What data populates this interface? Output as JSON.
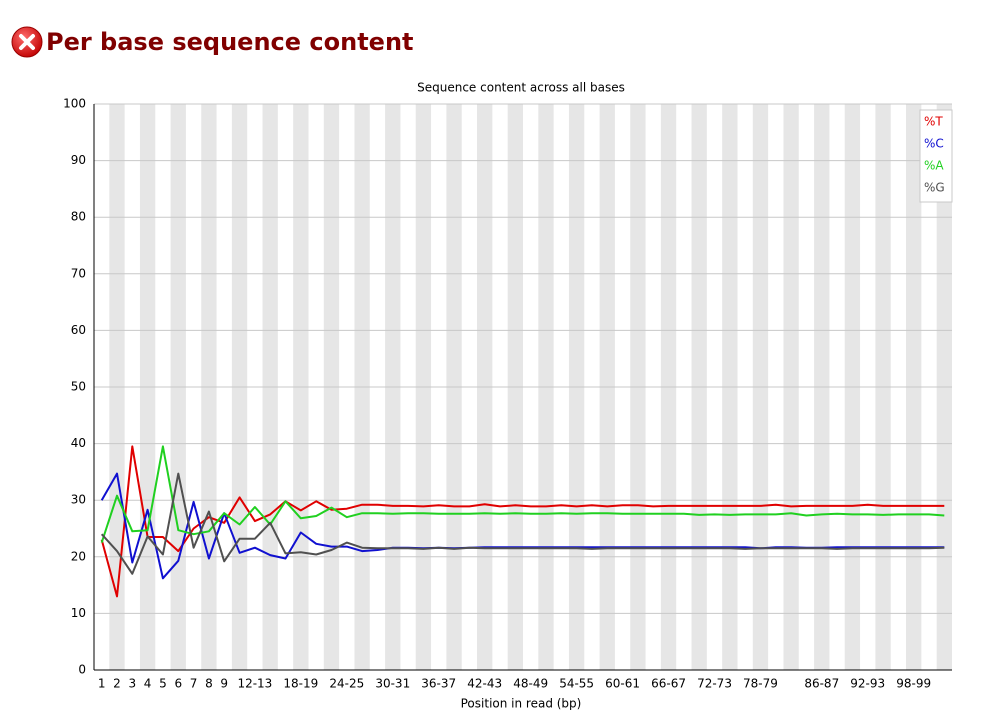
{
  "header": {
    "title": "Per base sequence content"
  },
  "chart_data": {
    "type": "line",
    "title": "Sequence content across all bases",
    "xlabel": "Position in read (bp)",
    "categories": [
      "1",
      "2",
      "3",
      "4",
      "5",
      "6",
      "7",
      "8",
      "9",
      null,
      "12-13",
      null,
      null,
      "18-19",
      null,
      null,
      "24-25",
      null,
      null,
      "30-31",
      null,
      null,
      "36-37",
      null,
      null,
      "42-43",
      null,
      null,
      "48-49",
      null,
      null,
      "54-55",
      null,
      null,
      "60-61",
      null,
      null,
      "66-67",
      null,
      null,
      "72-73",
      null,
      null,
      "78-79",
      null,
      null,
      null,
      "86-87",
      null,
      null,
      "92-93",
      null,
      null,
      "98-99",
      null,
      null
    ],
    "series": [
      {
        "name": "%T",
        "color": "#e00000",
        "values": [
          23,
          13,
          39.5,
          23.5,
          23.5,
          21,
          25,
          27,
          26,
          30.5,
          26.3,
          27.5,
          29.8,
          28.2,
          29.8,
          28.3,
          28.5,
          29.2,
          29.2,
          29.0,
          29.0,
          28.9,
          29.1,
          28.9,
          28.9,
          29.3,
          28.9,
          29.1,
          28.9,
          28.9,
          29.1,
          28.9,
          29.1,
          28.9,
          29.1,
          29.1,
          28.9,
          29.0,
          29.0,
          29.0,
          29.0,
          29.0,
          29.0,
          29.0,
          29.2,
          28.9,
          29.0,
          29.0,
          29.0,
          29.0,
          29.2,
          29.0,
          29.0,
          29.0,
          29.0,
          29.0
        ]
      },
      {
        "name": "%C",
        "color": "#1010d0",
        "values": [
          30,
          34.7,
          19,
          28.3,
          16.2,
          19.3,
          29.7,
          19.7,
          27.7,
          20.7,
          21.6,
          20.3,
          19.7,
          24.3,
          22.3,
          21.8,
          21.8,
          21.0,
          21.2,
          21.6,
          21.6,
          21.5,
          21.6,
          21.5,
          21.6,
          21.7,
          21.7,
          21.7,
          21.7,
          21.7,
          21.7,
          21.7,
          21.7,
          21.7,
          21.7,
          21.7,
          21.7,
          21.7,
          21.7,
          21.7,
          21.7,
          21.7,
          21.7,
          21.5,
          21.7,
          21.7,
          21.6,
          21.6,
          21.7,
          21.7,
          21.7,
          21.7,
          21.7,
          21.7,
          21.7,
          21.7
        ]
      },
      {
        "name": "%A",
        "color": "#20d020",
        "values": [
          22.5,
          30.8,
          24.5,
          24.7,
          39.5,
          24.7,
          24,
          24.5,
          27.7,
          25.7,
          28.8,
          25.7,
          29.8,
          26.8,
          27.2,
          28.7,
          27,
          27.7,
          27.7,
          27.6,
          27.7,
          27.7,
          27.6,
          27.6,
          27.6,
          27.7,
          27.6,
          27.7,
          27.6,
          27.6,
          27.7,
          27.6,
          27.7,
          27.7,
          27.6,
          27.6,
          27.6,
          27.6,
          27.6,
          27.4,
          27.5,
          27.4,
          27.5,
          27.5,
          27.5,
          27.7,
          27.3,
          27.5,
          27.6,
          27.5,
          27.5,
          27.4,
          27.5,
          27.5,
          27.5,
          27.3
        ]
      },
      {
        "name": "%G",
        "color": "#505050",
        "values": [
          24,
          21,
          17,
          23.6,
          20.4,
          34.7,
          21.6,
          28,
          19.2,
          23.2,
          23.2,
          26,
          20.6,
          20.8,
          20.4,
          21.2,
          22.5,
          21.6,
          21.5,
          21.5,
          21.5,
          21.4,
          21.6,
          21.4,
          21.6,
          21.5,
          21.5,
          21.5,
          21.5,
          21.5,
          21.5,
          21.5,
          21.4,
          21.5,
          21.5,
          21.5,
          21.5,
          21.5,
          21.5,
          21.5,
          21.5,
          21.5,
          21.4,
          21.5,
          21.5,
          21.5,
          21.5,
          21.5,
          21.4,
          21.5,
          21.5,
          21.5,
          21.5,
          21.5,
          21.5,
          21.6
        ]
      }
    ],
    "ylim": [
      0,
      100
    ],
    "yticks": [
      0,
      10,
      20,
      30,
      40,
      50,
      60,
      70,
      80,
      90,
      100
    ],
    "grid": true,
    "legend": "top-right"
  }
}
